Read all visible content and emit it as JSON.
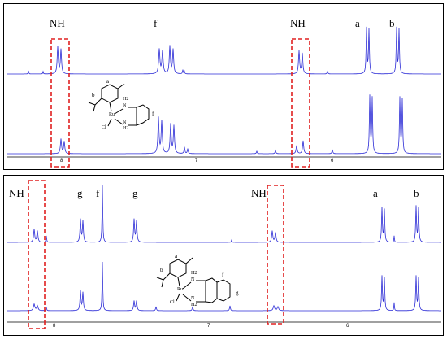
{
  "chart_data": [
    {
      "type": "nmr-spectrum",
      "peak_labels": [
        "NH",
        "f",
        "NH",
        "a",
        "b"
      ],
      "x_ticks": [
        "8",
        "7",
        "6"
      ],
      "structure_labels": {
        "ring": [
          "a",
          "b"
        ],
        "amine": [
          "H2",
          "N",
          "N",
          "H2"
        ],
        "metal": "Ru",
        "halide": "Cl",
        "right": "f"
      },
      "colors": {
        "trace": "#2b2bd6",
        "box": "#e02020"
      },
      "x_range_ppm": [
        8.25,
        5.55
      ]
    },
    {
      "type": "nmr-spectrum",
      "peak_labels": [
        "NH",
        "g",
        "f",
        "g",
        "NH",
        "a",
        "b"
      ],
      "x_ticks": [
        "8",
        "7",
        "6"
      ],
      "structure_labels": {
        "ring": [
          "a",
          "b"
        ],
        "amine": [
          "H2",
          "N",
          "N",
          "H2"
        ],
        "metal": "Ru",
        "halide": "Cl",
        "right": [
          "f",
          "g"
        ]
      },
      "colors": {
        "trace": "#2b2bd6",
        "box": "#e02020"
      },
      "x_range_ppm": [
        8.25,
        5.55
      ]
    }
  ]
}
